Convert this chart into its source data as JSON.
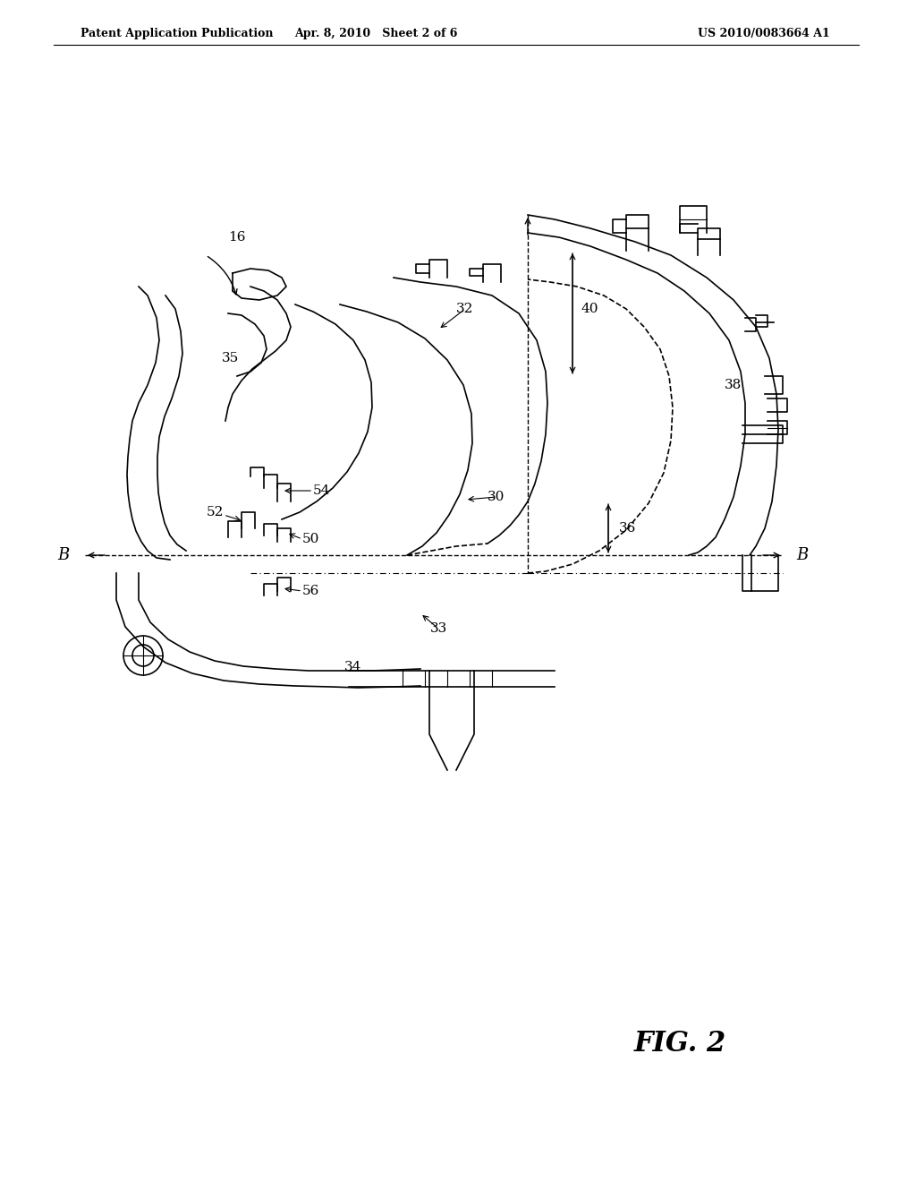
{
  "title_left": "Patent Application Publication",
  "title_mid": "Apr. 8, 2010   Sheet 2 of 6",
  "title_right": "US 2010/0083664 A1",
  "fig_label": "FIG. 2",
  "background_color": "#ffffff",
  "line_color": "#000000",
  "label_16": "16",
  "label_35": "35",
  "label_32": "32",
  "label_30": "30",
  "label_33": "33",
  "label_34": "34",
  "label_36": "36",
  "label_38": "38",
  "label_40": "40",
  "label_50": "50",
  "label_52": "52",
  "label_54": "54",
  "label_56": "56",
  "label_B_left": "B",
  "label_B_right": "B",
  "dashed_line_color": "#000000",
  "dash_dot_color": "#000000"
}
